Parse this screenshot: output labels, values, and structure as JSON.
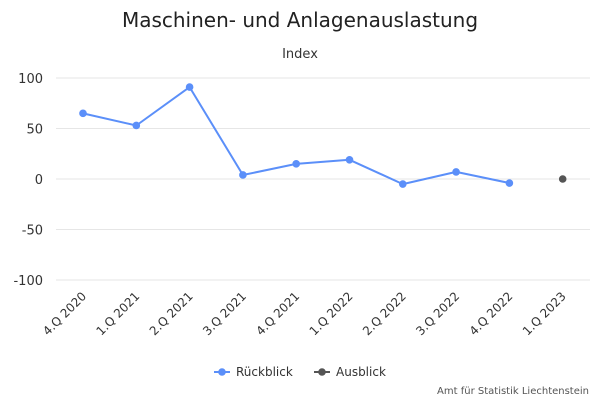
{
  "chart_data": {
    "type": "line",
    "title": "Maschinen- und Anlagenauslastung",
    "subtitle": "Index",
    "categories": [
      "4.Q 2020",
      "1.Q 2021",
      "2.Q 2021",
      "3.Q 2021",
      "4.Q 2021",
      "1.Q 2022",
      "2.Q 2022",
      "3.Q 2022",
      "4.Q 2022",
      "1.Q 2023"
    ],
    "ylim": [
      -100,
      100
    ],
    "yticks": [
      100,
      50,
      0,
      -50,
      -100
    ],
    "grid": true,
    "legend_position": "bottom-center",
    "series": [
      {
        "name": "Rückblick",
        "color": "#5b8ff9",
        "values": [
          65,
          53,
          91,
          4,
          15,
          19,
          -5,
          7,
          -4,
          null
        ],
        "line": true
      },
      {
        "name": "Ausblick",
        "color": "#555555",
        "values": [
          null,
          null,
          null,
          null,
          null,
          null,
          null,
          null,
          null,
          0
        ],
        "line": false
      }
    ],
    "credit": "Amt für Statistik Liechtenstein"
  }
}
